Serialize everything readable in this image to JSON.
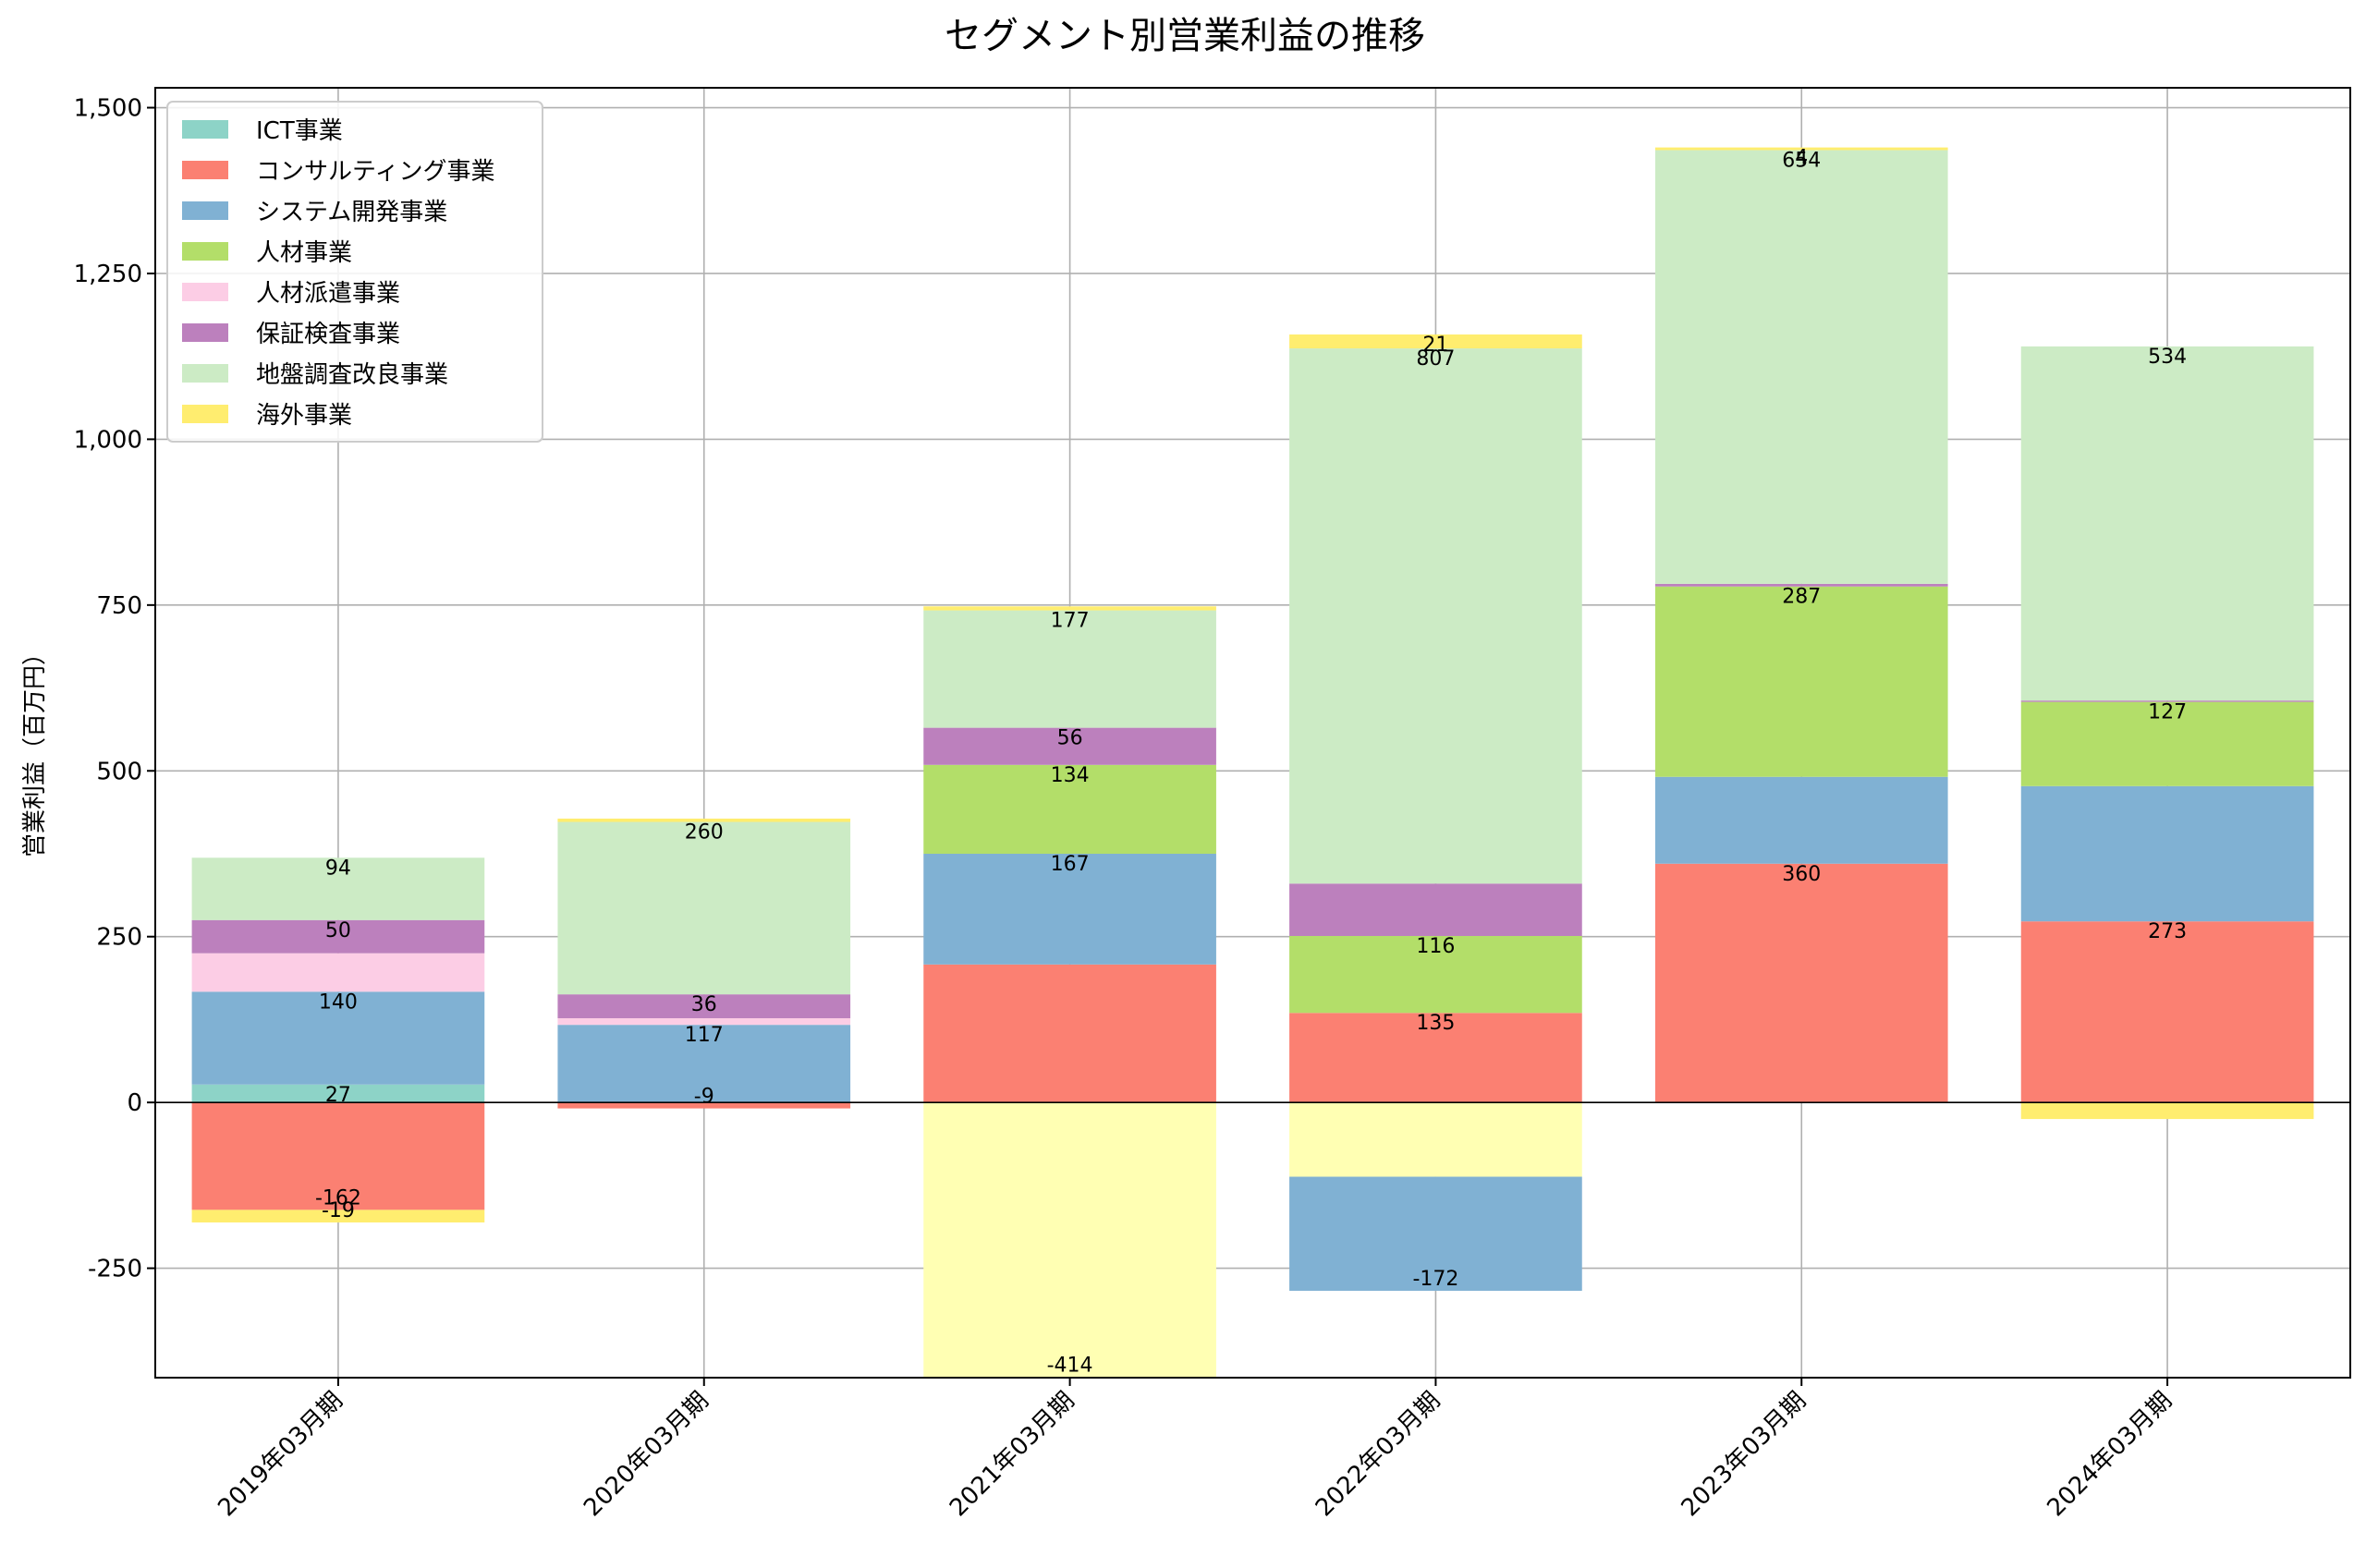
{
  "chart_data": {
    "type": "bar",
    "stacked": true,
    "title": "セグメント別営業利益の推移",
    "xlabel": "",
    "ylabel": "営業利益（百万円）",
    "ylim": [
      -415,
      1530
    ],
    "yticks": [
      -250,
      0,
      250,
      500,
      750,
      1000,
      1250,
      1500
    ],
    "ytick_labels": [
      "-250",
      "0",
      "250",
      "500",
      "750",
      "1,000",
      "1,250",
      "1,500"
    ],
    "grid": true,
    "legend_position": "top-left",
    "categories": [
      "2019年03月期",
      "2020年03月期",
      "2021年03月期",
      "2022年03月期",
      "2023年03月期",
      "2024年03月期"
    ],
    "series": [
      {
        "name": "ICT事業",
        "color": "#8dd3c7",
        "values": [
          27,
          0,
          0,
          0,
          0,
          0
        ],
        "labels": [
          "27",
          "",
          "",
          "",
          "",
          ""
        ]
      },
      {
        "name": "コンサルティング事業",
        "color": "#fb8072",
        "values": [
          -162,
          -9,
          208,
          135,
          360,
          273
        ],
        "labels": [
          "-162",
          "-9",
          "",
          "135",
          "360",
          "273"
        ]
      },
      {
        "name": "システム開発事業",
        "color": "#80b1d3",
        "values": [
          140,
          117,
          167,
          -172,
          131,
          204
        ],
        "labels": [
          "140",
          "117",
          "167",
          "-172",
          "",
          ""
        ]
      },
      {
        "name": "人材事業",
        "color": "#b3de69",
        "values": [
          0,
          0,
          134,
          116,
          287,
          127
        ],
        "labels": [
          "",
          "",
          "134",
          "116",
          "287",
          "127"
        ]
      },
      {
        "name": "人材派遣事業",
        "color": "#fccde5",
        "values": [
          58,
          10,
          0,
          0,
          0,
          0
        ],
        "labels": [
          "",
          "",
          "",
          "",
          "",
          ""
        ]
      },
      {
        "name": "保証検査事業",
        "color": "#bc80bd",
        "values": [
          50,
          36,
          56,
          79,
          4,
          2
        ],
        "labels": [
          "50",
          "36",
          "56",
          "",
          "",
          ""
        ]
      },
      {
        "name": "地盤調査改良事業",
        "color": "#ccebc5",
        "values": [
          94,
          260,
          177,
          807,
          654,
          534
        ],
        "labels": [
          "94",
          "260",
          "177",
          "807",
          "654",
          "534"
        ]
      },
      {
        "name": "海外事業",
        "color": "#ffed6f",
        "values": [
          -19,
          5,
          6,
          21,
          4,
          -25
        ],
        "labels": [
          "-19",
          "",
          "",
          "21",
          "4",
          ""
        ]
      }
    ],
    "extra_bars": [
      {
        "category": "2021年03月期",
        "value": -414,
        "color": "#ffffb3",
        "label": "-414"
      },
      {
        "category": "2022年03月期",
        "value": -112,
        "color": "#ffffb3",
        "label": ""
      }
    ]
  }
}
